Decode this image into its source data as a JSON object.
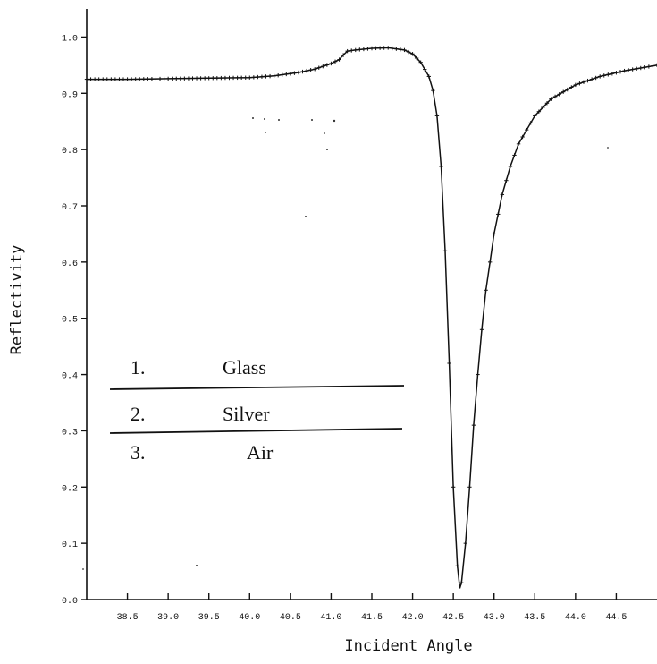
{
  "chart_data": {
    "type": "line",
    "title": "",
    "xlabel": "Incident Angle",
    "ylabel": "Reflectivity",
    "xlim": [
      38.0,
      45.0
    ],
    "ylim": [
      0.0,
      1.05
    ],
    "x_ticks": [
      38.5,
      39.0,
      39.5,
      40.0,
      40.5,
      41.0,
      41.5,
      42.0,
      42.5,
      43.0,
      43.5,
      44.0,
      44.5
    ],
    "x_tick_labels": [
      "38.5",
      "39.0",
      "39.5",
      "40.0",
      "40.5",
      "41.0",
      "41.5",
      "42.0",
      "42.5",
      "43.0",
      "43.5",
      "44.0",
      "44.5"
    ],
    "y_ticks": [
      0.0,
      0.1,
      0.2,
      0.3,
      0.4,
      0.5,
      0.6,
      0.7,
      0.8,
      0.9,
      1.0
    ],
    "y_tick_labels": [
      "0.0",
      "0.1",
      "0.2",
      "0.3",
      "0.4",
      "0.5",
      "0.6",
      "0.7",
      "0.8",
      "0.9",
      "1.0"
    ],
    "grid": false,
    "legend": null,
    "series": [
      {
        "x": [
          38.0,
          38.5,
          39.0,
          39.5,
          40.0,
          40.3,
          40.6,
          40.8,
          41.0,
          41.1,
          41.15,
          41.2,
          41.3,
          41.5,
          41.7,
          41.9,
          42.0,
          42.1,
          42.2,
          42.25,
          42.3,
          42.35,
          42.4,
          42.45,
          42.5,
          42.55,
          42.58,
          42.6,
          42.65,
          42.7,
          42.75,
          42.8,
          42.85,
          42.9,
          42.95,
          43.0,
          43.1,
          43.2,
          43.3,
          43.5,
          43.7,
          44.0,
          44.3,
          44.6,
          45.0
        ],
        "y": [
          0.925,
          0.925,
          0.926,
          0.927,
          0.928,
          0.931,
          0.937,
          0.943,
          0.953,
          0.96,
          0.968,
          0.975,
          0.977,
          0.98,
          0.981,
          0.977,
          0.97,
          0.955,
          0.93,
          0.905,
          0.86,
          0.77,
          0.62,
          0.42,
          0.2,
          0.06,
          0.02,
          0.03,
          0.1,
          0.2,
          0.31,
          0.4,
          0.48,
          0.55,
          0.6,
          0.65,
          0.72,
          0.77,
          0.81,
          0.86,
          0.89,
          0.915,
          0.93,
          0.94,
          0.95
        ]
      }
    ],
    "annotations": [
      {
        "number": "1.",
        "name": "Glass"
      },
      {
        "number": "2.",
        "name": "Silver"
      },
      {
        "number": "3.",
        "name": "Air"
      }
    ]
  }
}
